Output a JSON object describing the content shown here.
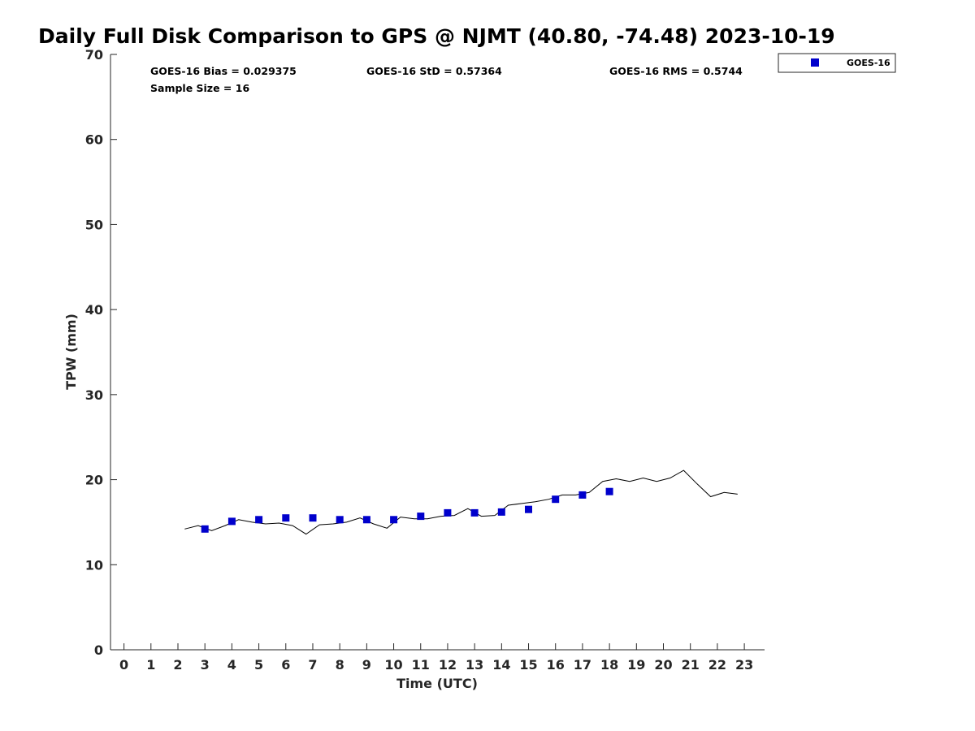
{
  "chart_data": {
    "type": "scatter",
    "title": "Daily Full Disk Comparison to GPS @ NJMT (40.80, -74.48) 2023-10-19",
    "xlabel": "Time (UTC)",
    "ylabel": "TPW (mm)",
    "xlim": [
      -0.5,
      23.75
    ],
    "ylim": [
      0,
      70
    ],
    "xticks": [
      0,
      1,
      2,
      3,
      4,
      5,
      6,
      7,
      8,
      9,
      10,
      11,
      12,
      13,
      14,
      15,
      16,
      17,
      18,
      19,
      20,
      21,
      22,
      23
    ],
    "yticks": [
      0,
      10,
      20,
      30,
      40,
      50,
      60,
      70
    ],
    "grid": false,
    "legend": {
      "placement": "top-right",
      "entries": [
        "GOES-16"
      ]
    },
    "stats": {
      "bias": "GOES-16 Bias = 0.029375",
      "std": "GOES-16 StD = 0.57364",
      "rms": "GOES-16 RMS = 0.5744",
      "sample": "Sample Size = 16"
    },
    "series": [
      {
        "name": "GOES-16",
        "style": "markers",
        "color": "#0000cc",
        "x": [
          3,
          4,
          5,
          6,
          7,
          8,
          9,
          10,
          11,
          12,
          13,
          14,
          15,
          16,
          17,
          18
        ],
        "y": [
          14.2,
          15.1,
          15.3,
          15.5,
          15.5,
          15.3,
          15.3,
          15.3,
          15.7,
          16.1,
          16.1,
          16.2,
          16.5,
          17.7,
          18.2,
          18.6
        ]
      },
      {
        "style": "line",
        "color": "#000000",
        "x": [
          2.25,
          2.75,
          3.25,
          3.75,
          4.25,
          4.75,
          5.25,
          5.75,
          6.25,
          6.75,
          7.25,
          7.75,
          8.25,
          8.75,
          9.25,
          9.75,
          10.25,
          10.75,
          11.25,
          11.75,
          12.25,
          12.75,
          13.25,
          13.75,
          14.25,
          14.75,
          15.25,
          15.75,
          16.25,
          16.75,
          17.25,
          17.75,
          18.25,
          18.75,
          19.25,
          19.75,
          20.25,
          20.75,
          21.25,
          21.75,
          22.25,
          22.75
        ],
        "y": [
          14.2,
          14.6,
          14.0,
          14.6,
          15.3,
          15.0,
          14.8,
          14.9,
          14.6,
          13.6,
          14.7,
          14.8,
          15.0,
          15.5,
          14.8,
          14.3,
          15.6,
          15.4,
          15.4,
          15.7,
          15.8,
          16.6,
          15.7,
          15.8,
          17.0,
          17.2,
          17.4,
          17.7,
          18.2,
          18.2,
          18.5,
          19.8,
          20.1,
          19.8,
          20.2,
          19.8,
          20.2,
          21.1,
          19.5,
          18.0,
          18.5,
          18.3
        ]
      }
    ]
  }
}
